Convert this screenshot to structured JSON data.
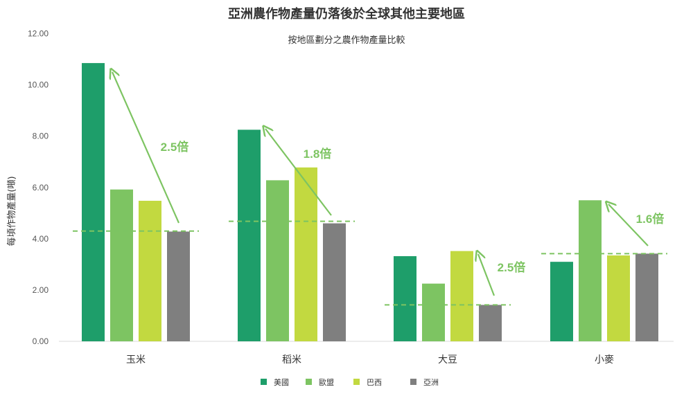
{
  "chart_data": {
    "type": "bar",
    "title": "亞洲農作物產量仍落後於全球其他主要地區",
    "subtitle": "按地區劃分之農作物產量比較",
    "ylabel": "每頃作物產量(噸)",
    "xlabel": "",
    "ylim": [
      0,
      12
    ],
    "yticks": [
      "0.00",
      "2.00",
      "4.00",
      "6.00",
      "8.00",
      "10.00",
      "12.00"
    ],
    "categories": [
      "玉米",
      "稻米",
      "大豆",
      "小麥"
    ],
    "series": [
      {
        "name": "美國",
        "color": "#1e9e6a",
        "values": [
          10.85,
          8.25,
          3.32,
          3.1
        ]
      },
      {
        "name": "歐盟",
        "color": "#7dc462",
        "values": [
          5.92,
          6.28,
          2.25,
          5.5
        ]
      },
      {
        "name": "巴西",
        "color": "#c2d940",
        "values": [
          5.48,
          6.78,
          3.52,
          3.35
        ]
      },
      {
        "name": "亞洲",
        "color": "#7f7f7f",
        "values": [
          4.28,
          4.6,
          1.42,
          3.42
        ]
      }
    ],
    "reference_lines": [
      4.3,
      4.68,
      1.42,
      3.42
    ],
    "annotations": [
      "2.5倍",
      "1.8倍",
      "2.5倍",
      "1.6倍"
    ],
    "annotation_color": "#7dc462",
    "grid": false,
    "legend_position": "bottom"
  }
}
